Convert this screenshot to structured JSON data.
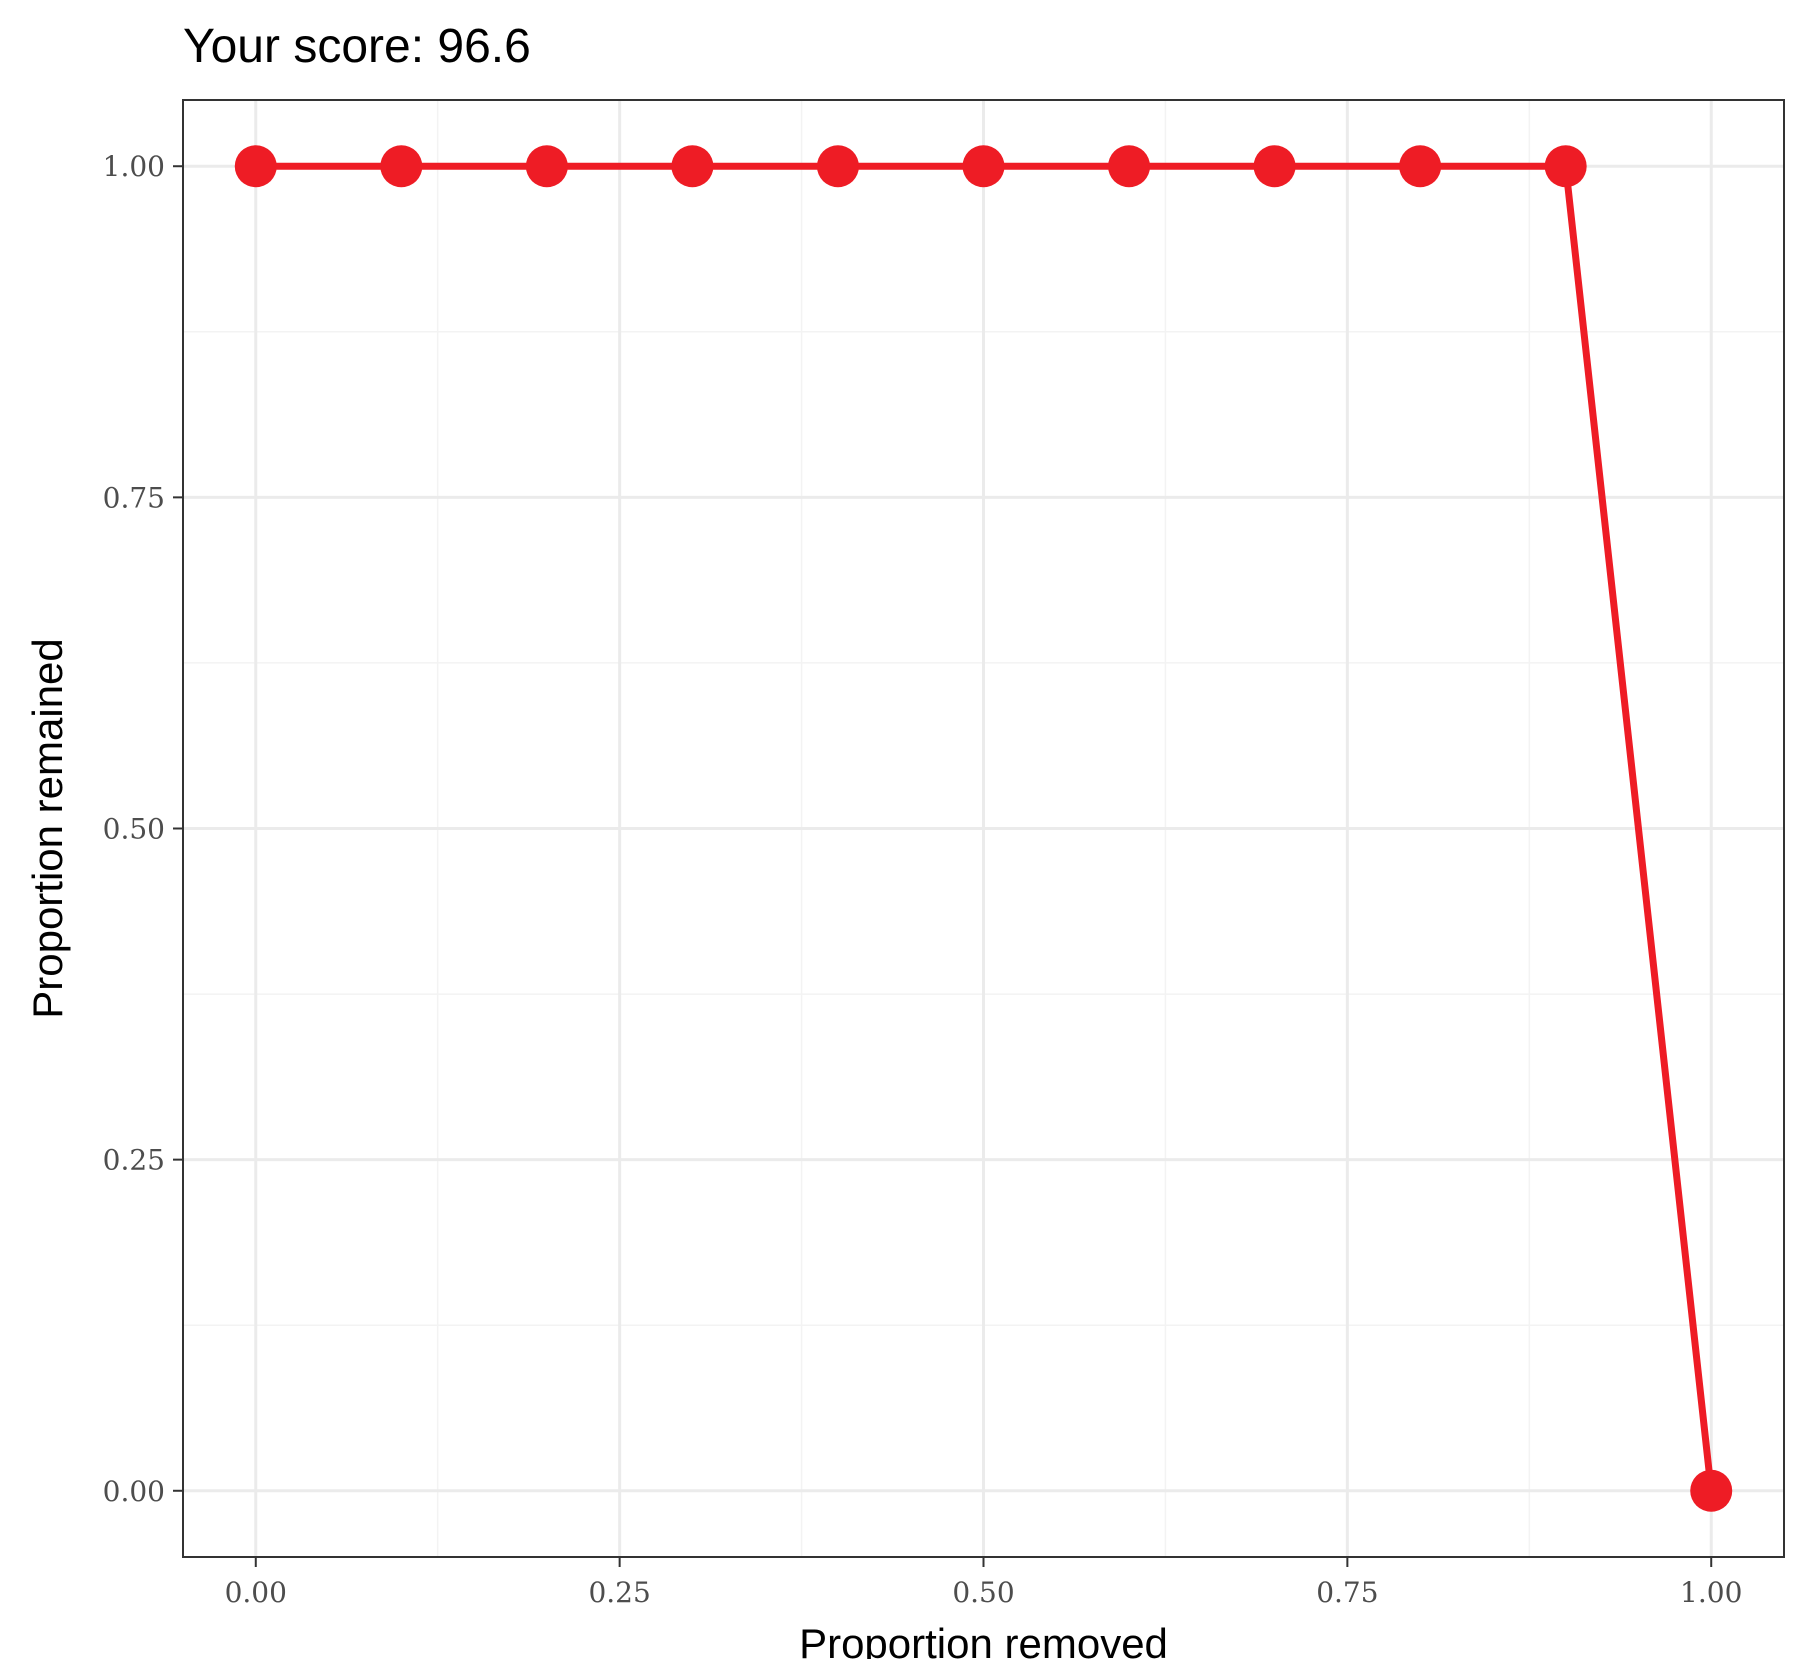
{
  "chart_data": {
    "type": "line",
    "title": "Your score:  96.6",
    "xlabel": "Proportion removed",
    "ylabel": "Proportion remained",
    "xlim": [
      -0.05,
      1.05
    ],
    "ylim": [
      -0.05,
      1.05
    ],
    "x_ticks": [
      0,
      0.25,
      0.5,
      0.75,
      1.0
    ],
    "x_tick_labels": [
      "0.00",
      "0.25",
      "0.50",
      "0.75",
      "1.00"
    ],
    "y_ticks": [
      0,
      0.25,
      0.5,
      0.75,
      1.0
    ],
    "y_tick_labels": [
      "0.00",
      "0.25",
      "0.50",
      "0.75",
      "1.00"
    ],
    "x_minor_ticks": [
      0.125,
      0.375,
      0.625,
      0.875
    ],
    "y_minor_ticks": [
      0.125,
      0.375,
      0.625,
      0.875
    ],
    "grid": true,
    "series": [
      {
        "color": "#ee1c25",
        "x": [
          0,
          0.1,
          0.2,
          0.3,
          0.4,
          0.5,
          0.6,
          0.7,
          0.8,
          0.9,
          1.0
        ],
        "y": [
          1,
          1,
          1,
          1,
          1,
          1,
          1,
          1,
          1,
          1,
          0
        ]
      }
    ]
  }
}
